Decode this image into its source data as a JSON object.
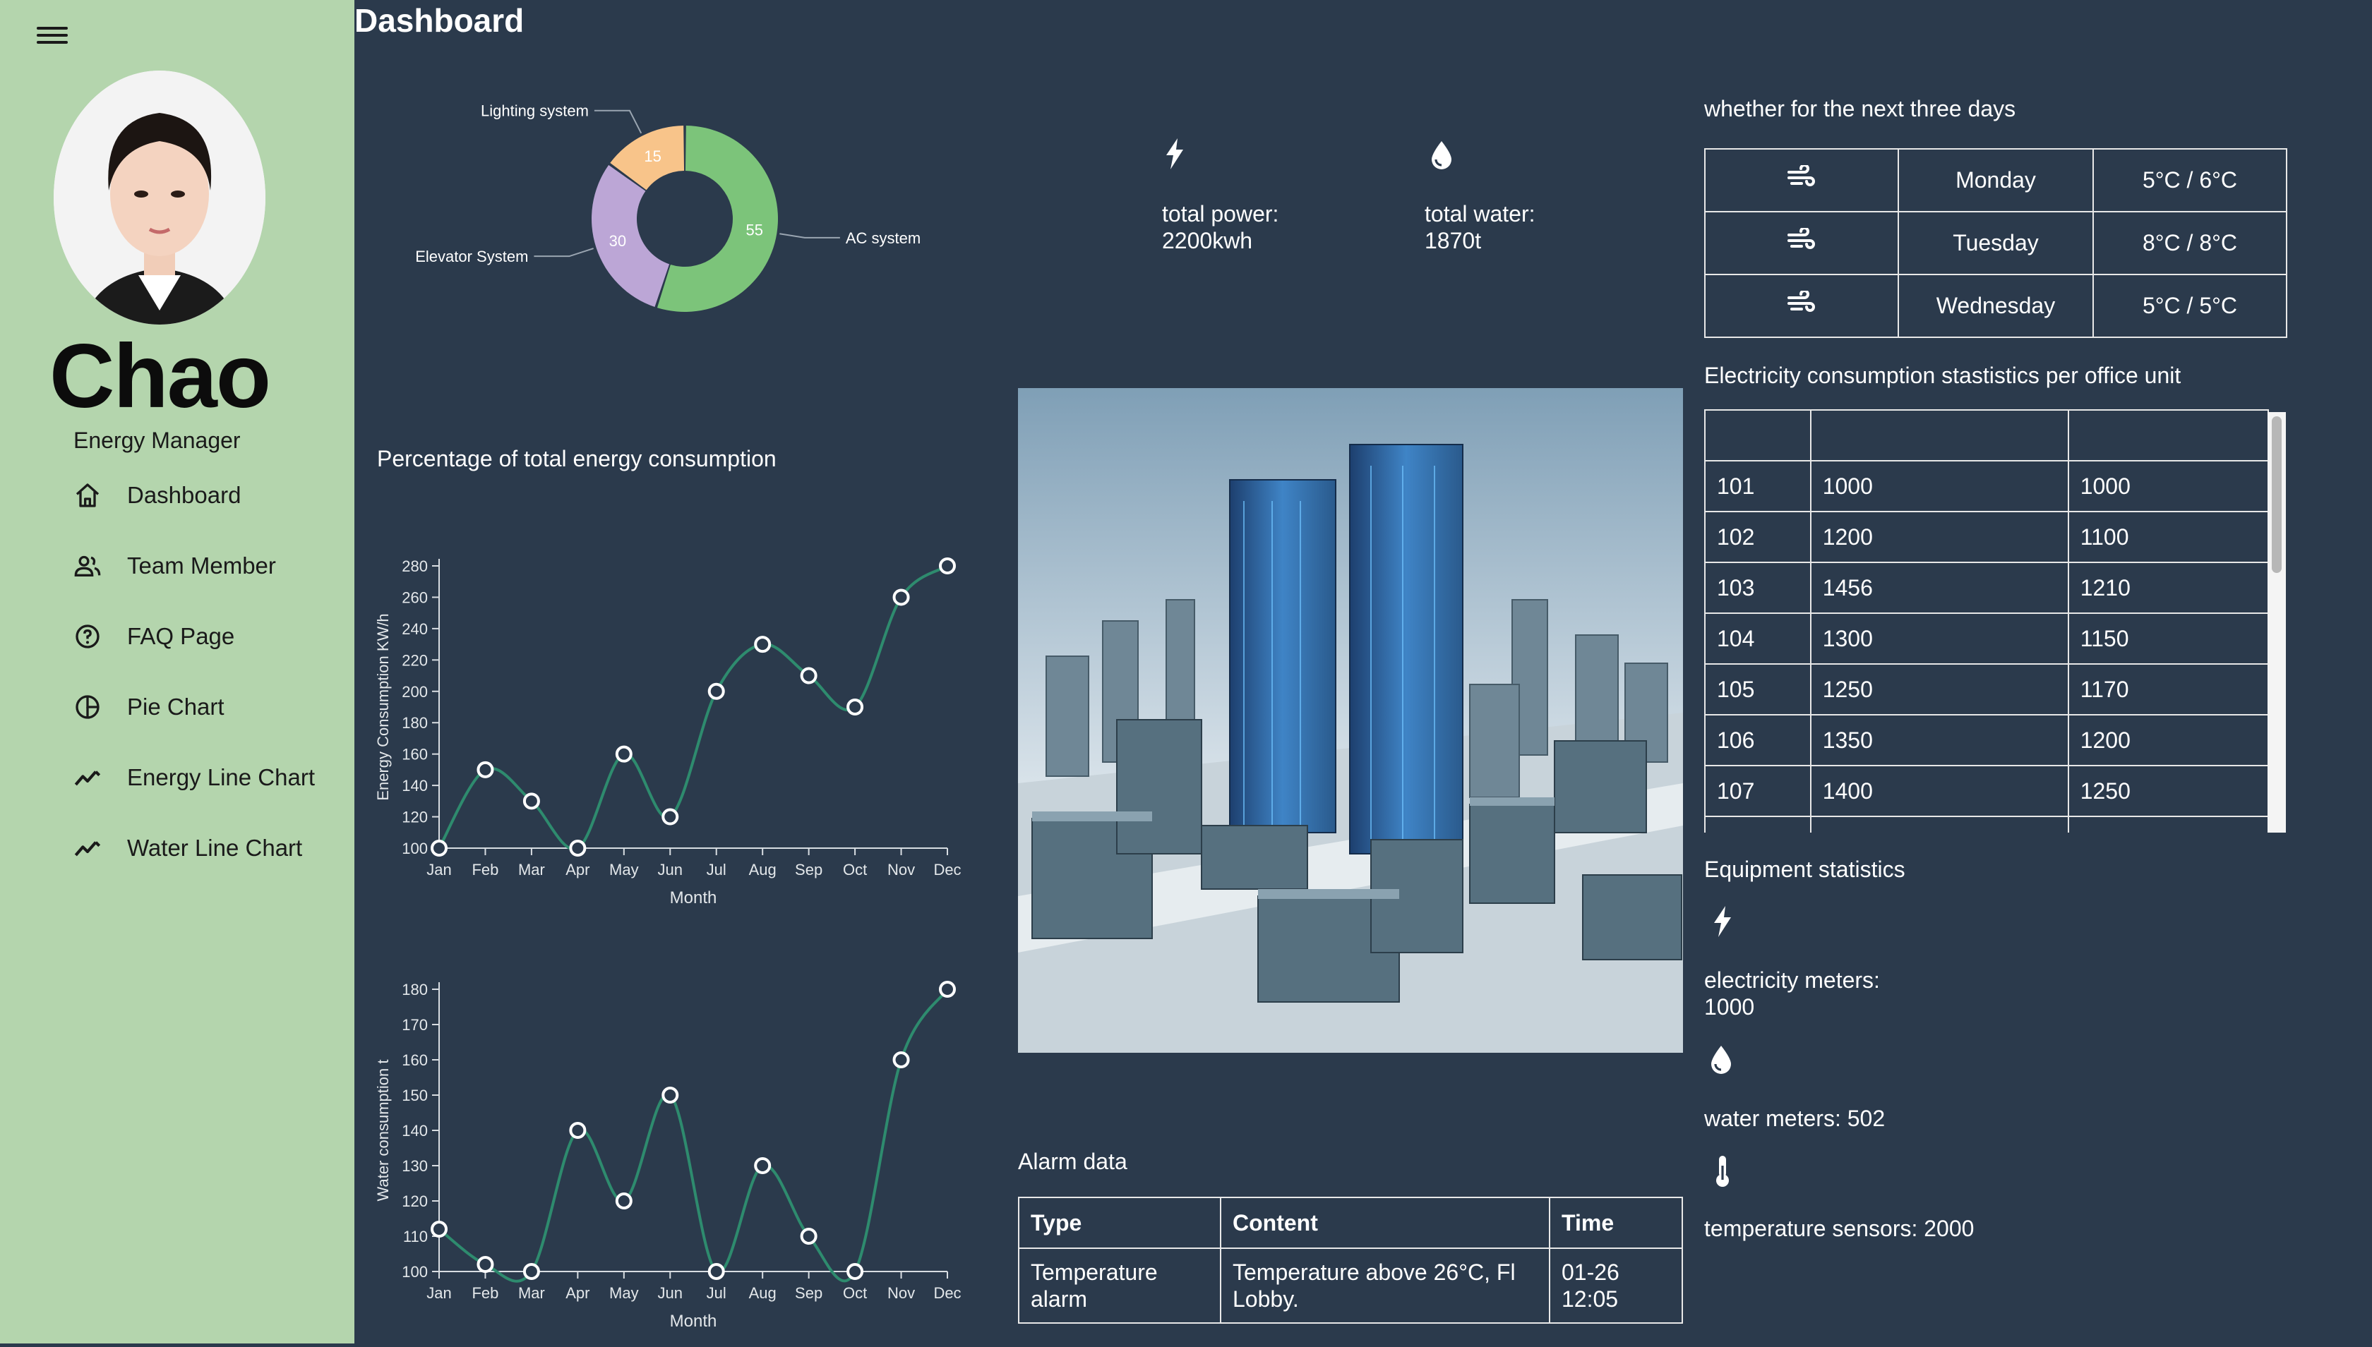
{
  "sidebar": {
    "user": {
      "name": "Chao",
      "role": "Energy Manager"
    },
    "nav": [
      {
        "label": "Dashboard",
        "icon": "home-icon"
      },
      {
        "label": "Team Member",
        "icon": "people-icon"
      },
      {
        "label": "FAQ Page",
        "icon": "help-circle-icon"
      },
      {
        "label": "Pie Chart",
        "icon": "pie-chart-icon"
      },
      {
        "label": "Energy Line Chart",
        "icon": "trending-line-icon"
      },
      {
        "label": "Water Line Chart",
        "icon": "trending-line-icon"
      }
    ]
  },
  "header": {
    "title": "Dashboard"
  },
  "pie": {
    "title": "Percentage of total energy consumption"
  },
  "totals": {
    "power": "total power:\n2200kwh",
    "power_l1": "total power:",
    "power_l2": "2200kwh",
    "water_l1": "total water:",
    "water_l2": "1870t"
  },
  "weather": {
    "title": "whether for the next three days",
    "rows": [
      {
        "day": "Monday",
        "temp": "5°C / 6°C",
        "icon": "wind-icon"
      },
      {
        "day": "Tuesday",
        "temp": "8°C / 8°C",
        "icon": "wind-icon"
      },
      {
        "day": "Wednesday",
        "temp": "5°C / 5°C",
        "icon": "wind-icon"
      }
    ]
  },
  "units": {
    "title": "Electricity consumption stastistics per office unit",
    "headers": [
      "",
      "",
      ""
    ],
    "rows": [
      [
        "101",
        "1000",
        "1000"
      ],
      [
        "102",
        "1200",
        "1100"
      ],
      [
        "103",
        "1456",
        "1210"
      ],
      [
        "104",
        "1300",
        "1150"
      ],
      [
        "105",
        "1250",
        "1170"
      ],
      [
        "106",
        "1350",
        "1200"
      ],
      [
        "107",
        "1400",
        "1250"
      ]
    ]
  },
  "equipment": {
    "title": "Equipment statistics",
    "electricity_l1": "electricity meters:",
    "electricity_l2": "1000",
    "water": "water meters: 502",
    "temperature": "temperature sensors: 2000"
  },
  "alarm": {
    "title": "Alarm data",
    "headers": {
      "type": "Type",
      "content": "Content",
      "time": "Time"
    },
    "rows": [
      {
        "type": "Temperature alarm",
        "content": "Temperature above 26°C, Fl Lobby.",
        "time": "01-26 12:05"
      }
    ]
  },
  "colors": {
    "background": "#2b3a4c",
    "sidebar": "#b4d5ad",
    "line": "#2e8b6e",
    "pie_ac": "#7cc47a",
    "pie_elevator": "#bca6d6",
    "pie_lighting": "#f8c48a"
  },
  "chart_data": [
    {
      "type": "pie",
      "labels": [
        "AC system",
        "Elevator System",
        "Lighting system"
      ],
      "values": [
        55,
        30,
        15
      ]
    },
    {
      "type": "line",
      "categories": [
        "Jan",
        "Feb",
        "Mar",
        "Apr",
        "May",
        "Jun",
        "Jul",
        "Aug",
        "Sep",
        "Oct",
        "Nov",
        "Dec"
      ],
      "values": [
        100,
        150,
        130,
        100,
        160,
        120,
        200,
        230,
        210,
        190,
        260,
        280
      ],
      "xlabel": "Month",
      "ylabel": "Energy Consumption KW/h",
      "ylim": [
        100,
        280
      ],
      "yticks": [
        100,
        120,
        140,
        160,
        180,
        200,
        220,
        240,
        260,
        280
      ]
    },
    {
      "type": "line",
      "categories": [
        "Jan",
        "Feb",
        "Mar",
        "Apr",
        "May",
        "Jun",
        "Jul",
        "Aug",
        "Sep",
        "Oct",
        "Nov",
        "Dec"
      ],
      "values": [
        112,
        102,
        100,
        140,
        120,
        150,
        100,
        130,
        110,
        100,
        160,
        180
      ],
      "xlabel": "Month",
      "ylabel": "Water consumption t",
      "ylim": [
        100,
        180
      ],
      "yticks": [
        100,
        110,
        120,
        130,
        140,
        150,
        160,
        170,
        180
      ]
    }
  ]
}
